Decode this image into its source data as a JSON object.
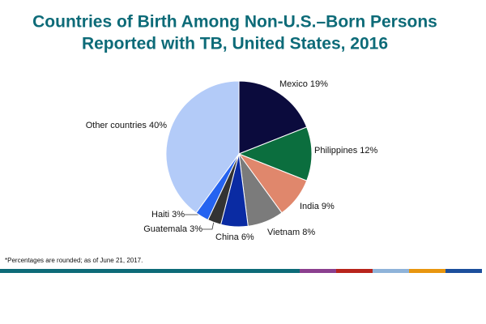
{
  "chart_data": {
    "type": "pie",
    "title": [
      "Countries of Birth Among Non-U.S.–Born Persons",
      "Reported with TB, United States, 2016"
    ],
    "categories": [
      "Mexico",
      "Philippines",
      "India",
      "Vietnam",
      "China",
      "Guatemala",
      "Haiti",
      "Other countries"
    ],
    "values": [
      19,
      12,
      9,
      8,
      6,
      3,
      3,
      40
    ],
    "value_labels": [
      "19%",
      "12%",
      "9%",
      "8%",
      "6%",
      "3%",
      "3%",
      "40%"
    ],
    "colors": [
      "#0b0b3d",
      "#0b6e3e",
      "#e0876c",
      "#7b7b7b",
      "#0a2ba3",
      "#333333",
      "#2563f0",
      "#b3cbf8"
    ],
    "footnote": "*Percentages are rounded; as of June 21, 2017."
  }
}
